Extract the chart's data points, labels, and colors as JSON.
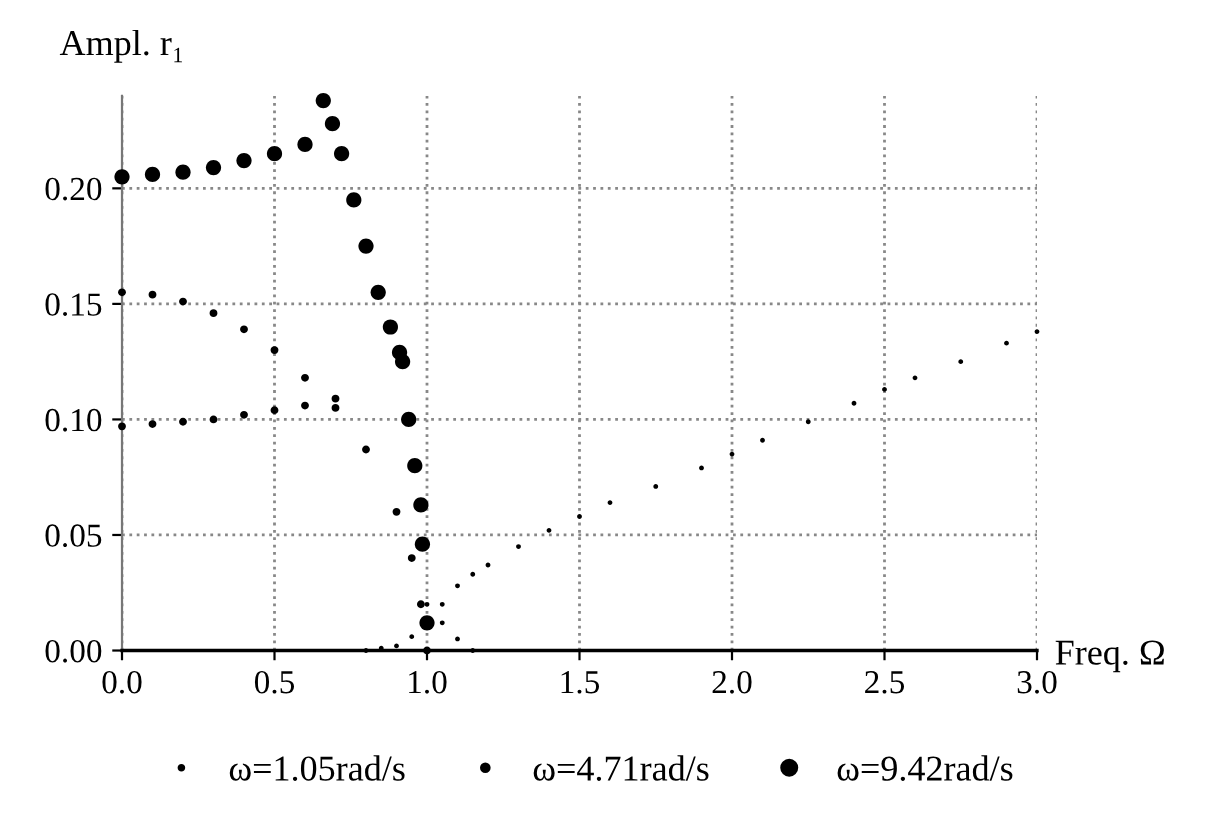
{
  "chart_data": {
    "type": "scatter",
    "xlabel": "Freq. Ω",
    "ylabel": "Ampl. r₁",
    "xlim": [
      0,
      3
    ],
    "ylim": [
      0,
      0.24
    ],
    "xticks": [
      {
        "value": 0,
        "label": "0.0"
      },
      {
        "value": 0.5,
        "label": "0.5"
      },
      {
        "value": 1,
        "label": "1.0"
      },
      {
        "value": 1.5,
        "label": "1.5"
      },
      {
        "value": 2,
        "label": "2.0"
      },
      {
        "value": 2.5,
        "label": "2.5"
      },
      {
        "value": 3,
        "label": "3.0"
      }
    ],
    "yticks": [
      {
        "value": 0,
        "label": "0.00"
      },
      {
        "value": 0.05,
        "label": "0.05"
      },
      {
        "value": 0.1,
        "label": "0.10"
      },
      {
        "value": 0.15,
        "label": "0.15"
      },
      {
        "value": 0.2,
        "label": "0.20"
      }
    ],
    "grid": true,
    "legend": "bottom",
    "marker": "circle",
    "series": [
      {
        "name": "ω=1.05rad/s",
        "color": "#000000",
        "x": [
          0.8,
          0.85,
          0.9,
          0.95,
          1.05,
          1.1,
          1.15,
          1.2,
          1.3,
          1.4,
          1.5,
          1.6,
          1.75,
          1.9,
          2.0,
          2.1,
          2.25,
          2.4,
          2.5,
          2.6,
          2.75,
          2.9,
          3.0,
          1.0,
          1.05,
          1.1,
          1.15
        ],
        "values": [
          0.0,
          0.001,
          0.002,
          0.006,
          0.02,
          0.028,
          0.033,
          0.037,
          0.045,
          0.052,
          0.058,
          0.064,
          0.071,
          0.079,
          0.085,
          0.091,
          0.099,
          0.107,
          0.113,
          0.118,
          0.125,
          0.133,
          0.138,
          0.02,
          0.012,
          0.005,
          0.0
        ]
      },
      {
        "name": "ω=4.71rad/s",
        "color": "#000000",
        "x": [
          0,
          0.1,
          0.2,
          0.3,
          0.4,
          0.5,
          0.6,
          0.7,
          0.8,
          0.9,
          0.95,
          0.98,
          1.0,
          0,
          0.1,
          0.2,
          0.3,
          0.4,
          0.5,
          0.6,
          0.7
        ],
        "values": [
          0.155,
          0.154,
          0.151,
          0.146,
          0.139,
          0.13,
          0.118,
          0.105,
          0.087,
          0.06,
          0.04,
          0.02,
          0.0,
          0.097,
          0.098,
          0.099,
          0.1,
          0.102,
          0.104,
          0.106,
          0.109
        ]
      },
      {
        "name": "ω=9.42rad/s",
        "color": "#000000",
        "x": [
          0,
          0.1,
          0.2,
          0.3,
          0.4,
          0.5,
          0.6,
          0.66,
          0.69,
          0.72,
          0.76,
          0.8,
          0.84,
          0.88,
          0.91,
          0.92,
          0.94,
          0.96,
          0.98,
          0.985,
          1.0
        ],
        "values": [
          0.205,
          0.206,
          0.207,
          0.209,
          0.212,
          0.215,
          0.219,
          0.238,
          0.228,
          0.215,
          0.195,
          0.175,
          0.155,
          0.14,
          0.129,
          0.125,
          0.1,
          0.08,
          0.063,
          0.046,
          0.012
        ]
      }
    ]
  }
}
